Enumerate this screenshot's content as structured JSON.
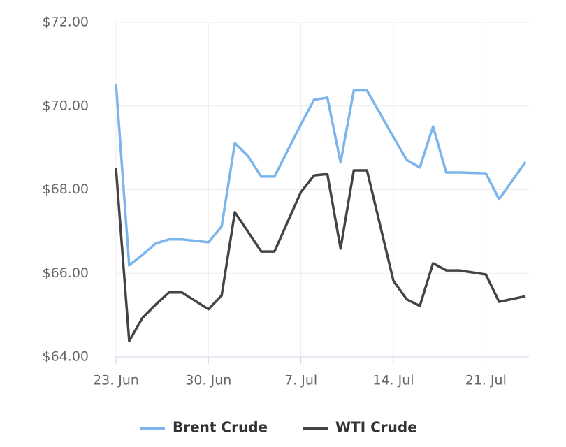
{
  "chart_data": {
    "type": "line",
    "x": [
      "23. Jun",
      "24. Jun",
      "25. Jun",
      "26. Jun",
      "27. Jun",
      "28. Jun",
      "30. Jun",
      "1. Jul",
      "2. Jul",
      "3. Jul",
      "4. Jul",
      "5. Jul",
      "7. Jul",
      "8. Jul",
      "9. Jul",
      "10. Jul",
      "11. Jul",
      "12. Jul",
      "14. Jul",
      "15. Jul",
      "16. Jul",
      "17. Jul",
      "18. Jul",
      "19. Jul",
      "21. Jul",
      "22. Jul",
      "24. Jul"
    ],
    "series": [
      {
        "name": "Brent Crude",
        "color": "#7cb5ec",
        "values": [
          70.53,
          66.19,
          66.44,
          66.71,
          66.81,
          66.81,
          66.74,
          67.12,
          69.11,
          68.8,
          68.31,
          68.31,
          69.56,
          70.15,
          70.2,
          68.65,
          70.37,
          70.37,
          69.26,
          68.71,
          68.53,
          69.51,
          68.41,
          68.41,
          68.39,
          67.77,
          68.66
        ]
      },
      {
        "name": "WTI Crude",
        "color": "#434348",
        "values": [
          68.51,
          64.38,
          64.93,
          65.25,
          65.54,
          65.54,
          65.14,
          65.47,
          67.46,
          66.99,
          66.52,
          66.52,
          67.94,
          68.34,
          68.37,
          66.59,
          68.46,
          68.46,
          65.82,
          65.38,
          65.22,
          66.24,
          66.07,
          66.07,
          65.97,
          65.32,
          65.45
        ]
      }
    ],
    "xlim": [
      "23. Jun",
      "24. Jul"
    ],
    "xticks": [
      "23. Jun",
      "30. Jun",
      "7. Jul",
      "14. Jul",
      "21. Jul"
    ],
    "ylim": [
      64,
      72
    ],
    "yticks": [
      {
        "value": 64,
        "label": "$64.00"
      },
      {
        "value": 66,
        "label": "$66.00"
      },
      {
        "value": 68,
        "label": "$68.00"
      },
      {
        "value": 70,
        "label": "$70.00"
      },
      {
        "value": 72,
        "label": "$72.00"
      }
    ],
    "grid": true,
    "legend": "bottom"
  }
}
